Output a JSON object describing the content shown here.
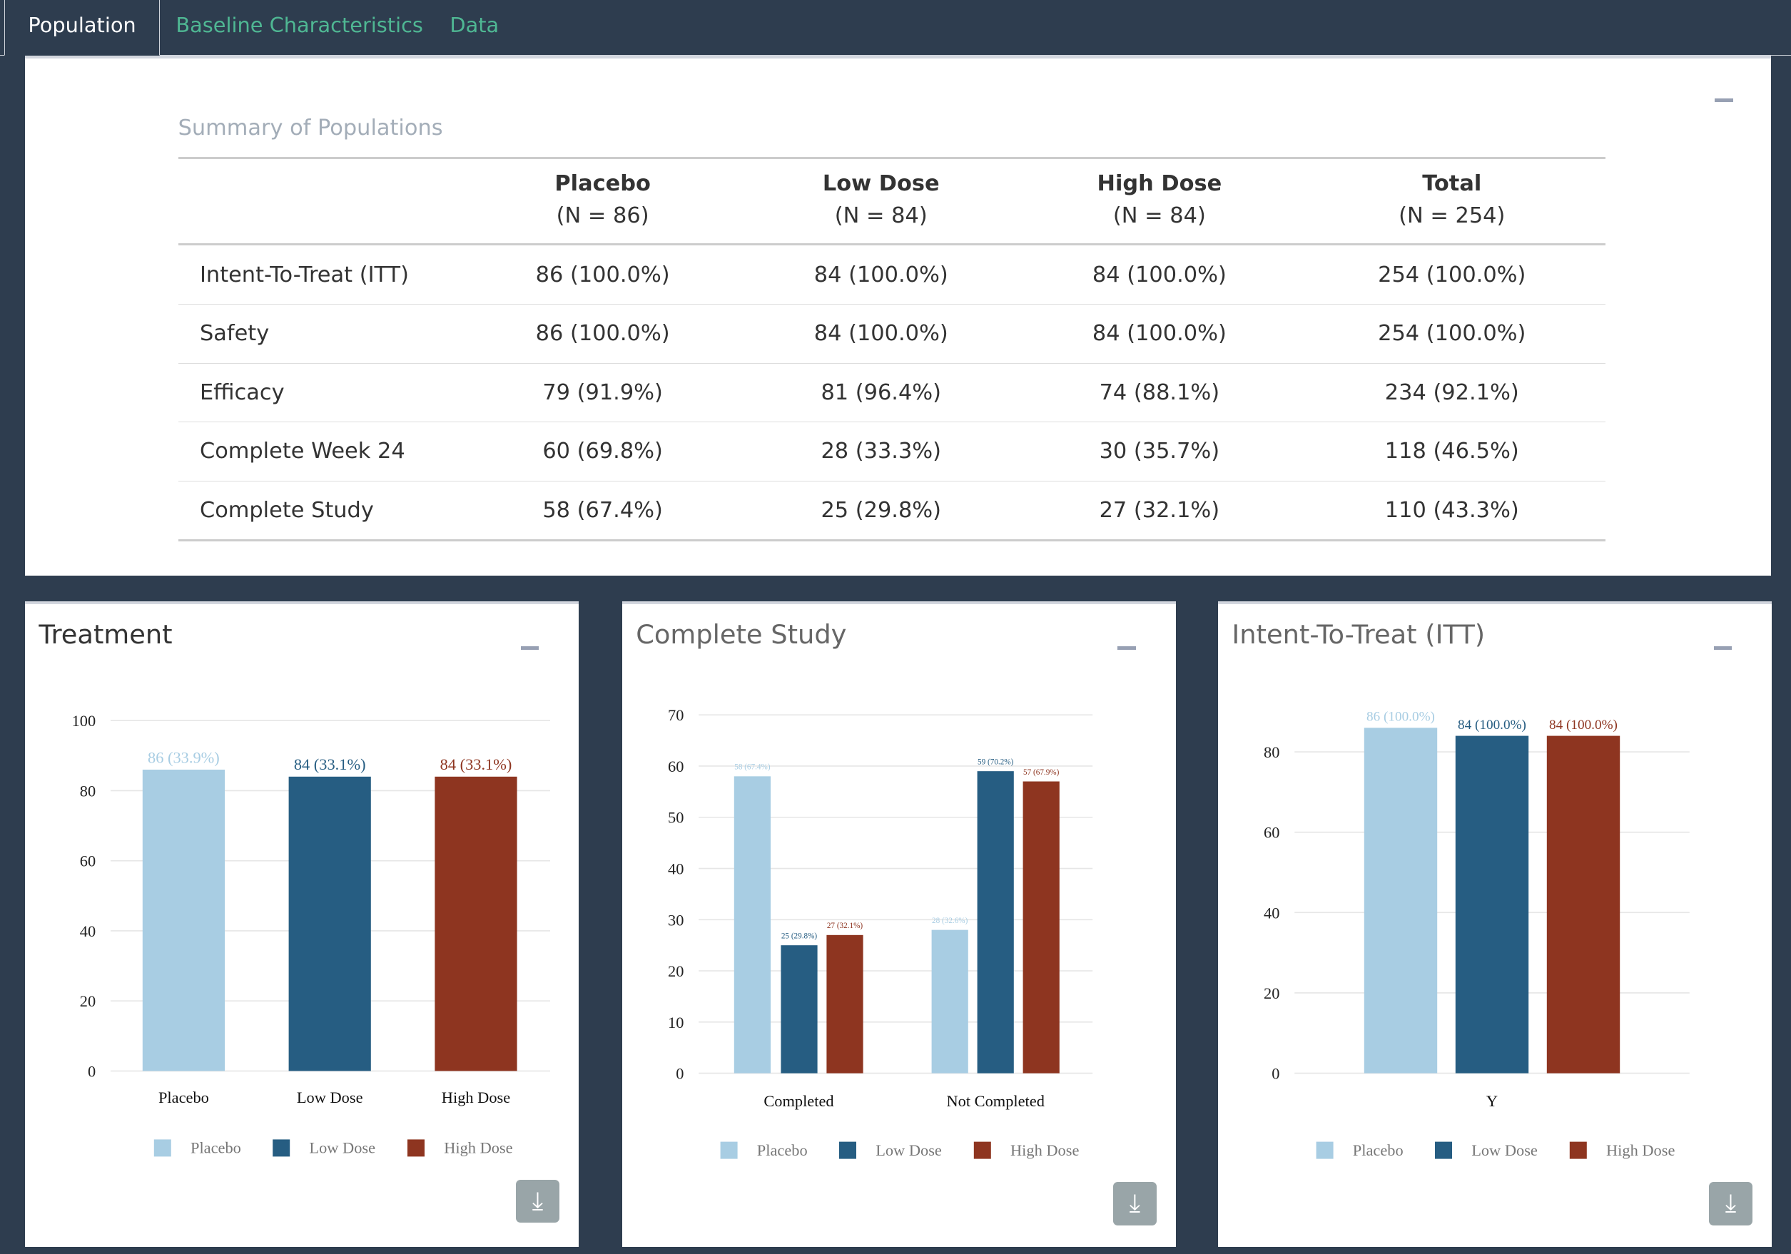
{
  "tabs": [
    "Population",
    "Baseline Characteristics",
    "Data"
  ],
  "summary": {
    "title": "Summary of Populations",
    "columns": [
      {
        "name": "Placebo",
        "n": "(N = 86)"
      },
      {
        "name": "Low Dose",
        "n": "(N = 84)"
      },
      {
        "name": "High Dose",
        "n": "(N = 84)"
      },
      {
        "name": "Total",
        "n": "(N = 254)"
      }
    ],
    "rows": [
      {
        "label": "Intent-To-Treat (ITT)",
        "values": [
          "86 (100.0%)",
          "84 (100.0%)",
          "84 (100.0%)",
          "254 (100.0%)"
        ]
      },
      {
        "label": "Safety",
        "values": [
          "86 (100.0%)",
          "84 (100.0%)",
          "84 (100.0%)",
          "254 (100.0%)"
        ]
      },
      {
        "label": "Efficacy",
        "values": [
          "79 (91.9%)",
          "81 (96.4%)",
          "74 (88.1%)",
          "234 (92.1%)"
        ]
      },
      {
        "label": "Complete Week 24",
        "values": [
          "60 (69.8%)",
          "28 (33.3%)",
          "30 (35.7%)",
          "118 (46.5%)"
        ]
      },
      {
        "label": "Complete Study",
        "values": [
          "58 (67.4%)",
          "25 (29.8%)",
          "27 (32.1%)",
          "110 (43.3%)"
        ]
      }
    ]
  },
  "colors": {
    "Placebo": "#a8cde3",
    "Low Dose": "#265d82",
    "High Dose": "#8e3520"
  },
  "chart_data": [
    {
      "type": "bar",
      "title": "Treatment",
      "categories": [
        "Placebo",
        "Low Dose",
        "High Dose"
      ],
      "series": [
        {
          "name": "Placebo",
          "values": [
            86,
            null,
            null
          ],
          "labels": [
            "86 (33.9%)"
          ]
        },
        {
          "name": "Low Dose",
          "values": [
            null,
            84,
            null
          ],
          "labels": [
            "84 (33.1%)"
          ]
        },
        {
          "name": "High Dose",
          "values": [
            null,
            null,
            84
          ],
          "labels": [
            "84 (33.1%)"
          ]
        }
      ],
      "yticks": [
        0,
        20,
        40,
        60,
        80,
        100
      ],
      "ylim": [
        0,
        100
      ],
      "legend": [
        "Placebo",
        "Low Dose",
        "High Dose"
      ]
    },
    {
      "type": "bar",
      "title": "Complete Study",
      "categories": [
        "Completed",
        "Not Completed"
      ],
      "series": [
        {
          "name": "Placebo",
          "values": [
            58,
            28
          ],
          "labels": [
            "58 (67.4%)",
            "28 (32.6%)"
          ]
        },
        {
          "name": "Low Dose",
          "values": [
            25,
            59
          ],
          "labels": [
            "25 (29.8%)",
            "59 (70.2%)"
          ]
        },
        {
          "name": "High Dose",
          "values": [
            27,
            57
          ],
          "labels": [
            "27 (32.1%)",
            "57 (67.9%)"
          ]
        }
      ],
      "yticks": [
        0,
        10,
        20,
        30,
        40,
        50,
        60,
        70
      ],
      "ylim": [
        0,
        70
      ],
      "legend": [
        "Placebo",
        "Low Dose",
        "High Dose"
      ]
    },
    {
      "type": "bar",
      "title": "Intent-To-Treat (ITT)",
      "categories": [
        "Y"
      ],
      "series": [
        {
          "name": "Placebo",
          "values": [
            86
          ],
          "labels": [
            "86 (100.0%)"
          ]
        },
        {
          "name": "Low Dose",
          "values": [
            84
          ],
          "labels": [
            "84 (100.0%)"
          ]
        },
        {
          "name": "High Dose",
          "values": [
            84
          ],
          "labels": [
            "84 (100.0%)"
          ]
        }
      ],
      "yticks": [
        0,
        20,
        40,
        60,
        80
      ],
      "ylim": [
        0,
        80
      ],
      "legend": [
        "Placebo",
        "Low Dose",
        "High Dose"
      ]
    }
  ]
}
